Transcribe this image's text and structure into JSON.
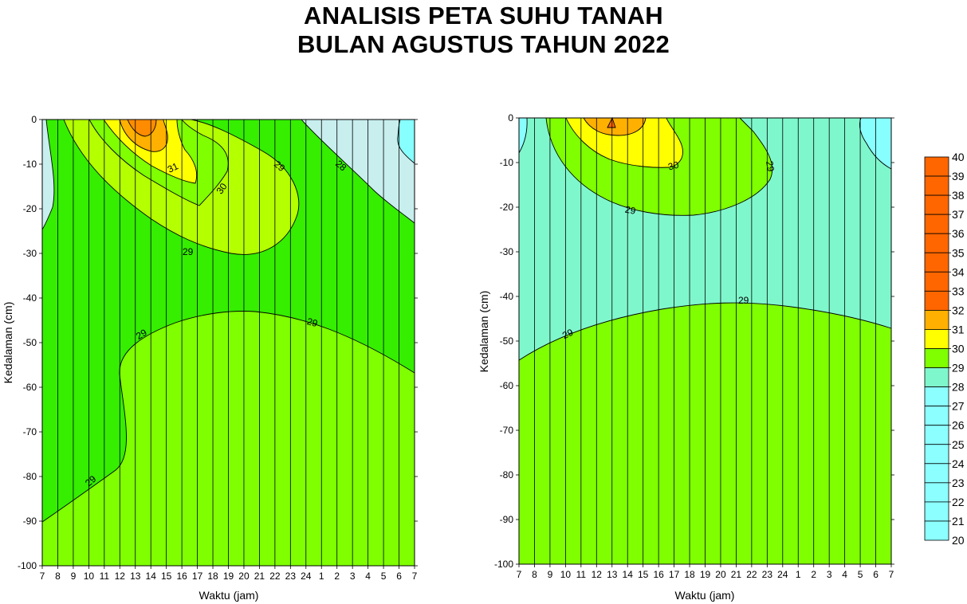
{
  "title_line1": "ANALISIS PETA SUHU TANAH",
  "title_line2": "BULAN AGUSTUS TAHUN 2022",
  "chart_data": [
    {
      "type": "contour",
      "xlabel": "Waktu (jam)",
      "ylabel": "Kedalaman (cm)",
      "x_ticks": [
        "7",
        "8",
        "9",
        "10",
        "11",
        "12",
        "13",
        "14",
        "15",
        "16",
        "17",
        "18",
        "19",
        "20",
        "21",
        "22",
        "23",
        "24",
        "1",
        "2",
        "3",
        "4",
        "5",
        "6",
        "7"
      ],
      "y_ticks": [
        0,
        -10,
        -20,
        -30,
        -40,
        -50,
        -60,
        -70,
        -80,
        -90,
        -100
      ],
      "ylim": [
        -100,
        0
      ],
      "grid": "vertical lines at each hour",
      "contour_labels": [
        "31",
        "30",
        "29",
        "28",
        "29",
        "29",
        "29",
        "29"
      ],
      "regions": [
        {
          "level": "31-32",
          "color": "#ffb000",
          "description": "near surface around 12-14 h"
        },
        {
          "level": "30-31",
          "color": "#ffff00"
        },
        {
          "level": "29-30",
          "color": "#b4ff00"
        },
        {
          "level": "28-29",
          "color": "#35ee00"
        },
        {
          "level": "27-28",
          "color": "#c8eeee"
        }
      ]
    },
    {
      "type": "contour",
      "xlabel": "Waktu (jam)",
      "ylabel": "Kedalaman (cm)",
      "x_ticks": [
        "7",
        "8",
        "9",
        "10",
        "11",
        "12",
        "13",
        "14",
        "15",
        "16",
        "17",
        "18",
        "19",
        "20",
        "21",
        "22",
        "23",
        "24",
        "1",
        "2",
        "3",
        "4",
        "5",
        "6",
        "7"
      ],
      "y_ticks": [
        0,
        -10,
        -20,
        -30,
        -40,
        -50,
        -60,
        -70,
        -80,
        -90,
        -100
      ],
      "ylim": [
        -100,
        0
      ],
      "grid": "vertical lines at each hour",
      "contour_labels": [
        "30",
        "29",
        "29",
        "29",
        "29"
      ],
      "regions": [
        {
          "level": "31-32",
          "color": "#ffb000",
          "description": "near surface around 12-14 h"
        },
        {
          "level": "30-31",
          "color": "#ffff00"
        },
        {
          "level": "29-30",
          "color": "#7fff00"
        },
        {
          "level": "28-29",
          "color": "#7ff7cc"
        },
        {
          "level": "27-28",
          "color": "#88ffff"
        }
      ]
    }
  ],
  "colorbar": {
    "labels": [
      "40",
      "39",
      "38",
      "37",
      "36",
      "35",
      "34",
      "33",
      "32",
      "31",
      "30",
      "29",
      "28",
      "27",
      "26",
      "25",
      "24",
      "23",
      "22",
      "21",
      "20"
    ],
    "colors": [
      "#ff6600",
      "#ff6600",
      "#ff6600",
      "#ff6600",
      "#ff6600",
      "#ff6600",
      "#ff6600",
      "#ff6600",
      "#ffb000",
      "#ffff00",
      "#7fff00",
      "#7ff7cc",
      "#8cffff",
      "#8cffff",
      "#8cffff",
      "#8cffff",
      "#8cffff",
      "#8cffff",
      "#8cffff",
      "#8cffff"
    ]
  }
}
